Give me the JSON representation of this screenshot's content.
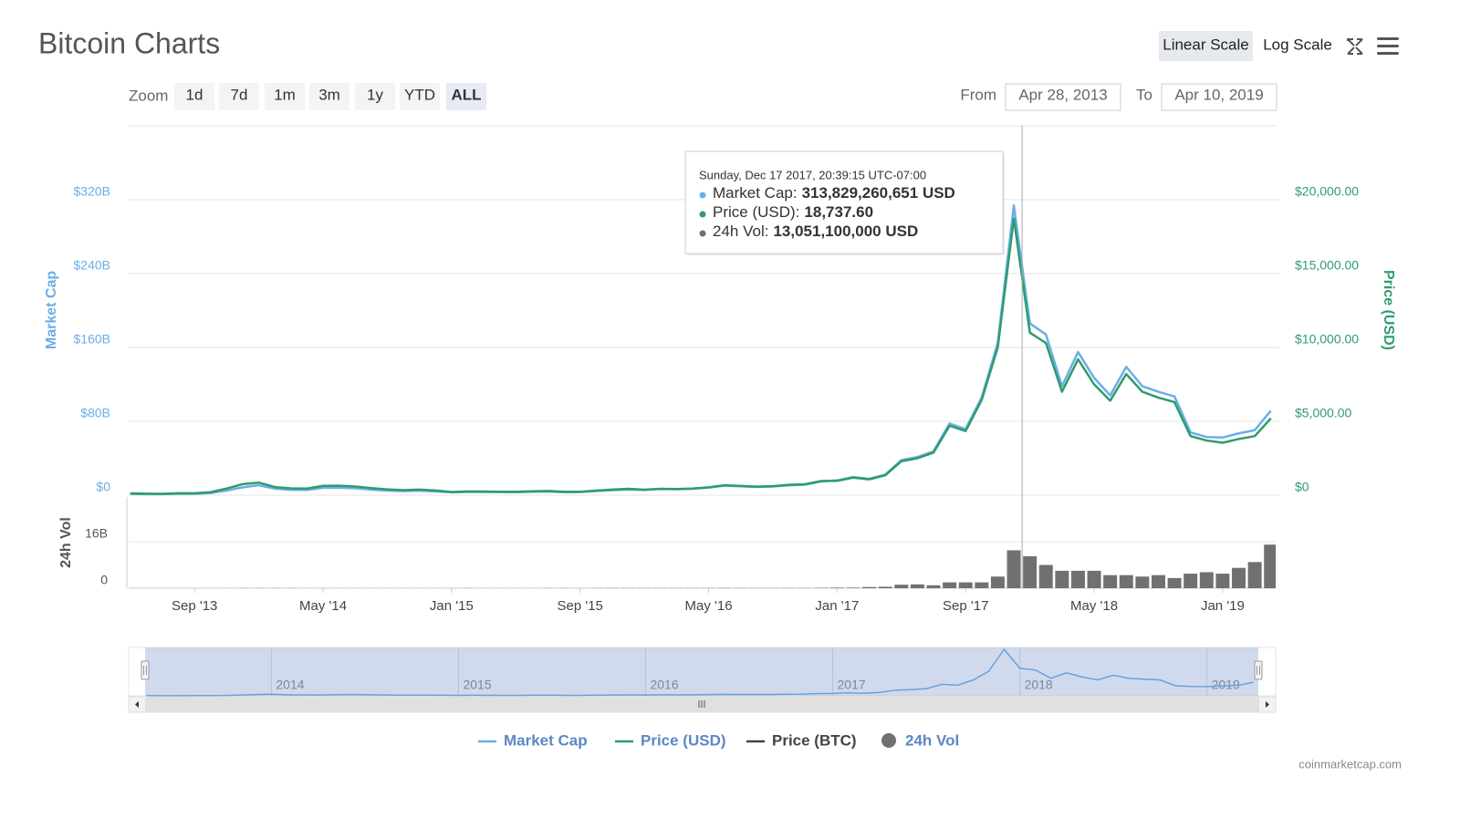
{
  "header": {
    "title": "Bitcoin Charts",
    "scale_buttons": [
      "Linear Scale",
      "Log Scale"
    ],
    "active_scale": "Linear Scale"
  },
  "zoom": {
    "label": "Zoom",
    "buttons": [
      "1d",
      "7d",
      "1m",
      "3m",
      "1y",
      "YTD",
      "ALL"
    ],
    "active": "ALL"
  },
  "range": {
    "from_label": "From",
    "from": "Apr 28, 2013",
    "to_label": "To",
    "to": "Apr 10, 2019"
  },
  "credit": "coinmarketcap.com",
  "chart_data": {
    "type": "line",
    "y_title": "Market Cap",
    "y2_title": "Price (USD)",
    "y3_title": "24h Vol",
    "x": [
      "2013-05",
      "2013-06",
      "2013-07",
      "2013-08",
      "2013-09",
      "2013-10",
      "2013-11",
      "2013-12",
      "2014-01",
      "2014-02",
      "2014-03",
      "2014-04",
      "2014-05",
      "2014-06",
      "2014-07",
      "2014-08",
      "2014-09",
      "2014-10",
      "2014-11",
      "2014-12",
      "2015-01",
      "2015-02",
      "2015-03",
      "2015-04",
      "2015-05",
      "2015-06",
      "2015-07",
      "2015-08",
      "2015-09",
      "2015-10",
      "2015-11",
      "2015-12",
      "2016-01",
      "2016-02",
      "2016-03",
      "2016-04",
      "2016-05",
      "2016-06",
      "2016-07",
      "2016-08",
      "2016-09",
      "2016-10",
      "2016-11",
      "2016-12",
      "2017-01",
      "2017-02",
      "2017-03",
      "2017-04",
      "2017-05",
      "2017-06",
      "2017-07",
      "2017-08",
      "2017-09",
      "2017-10",
      "2017-11",
      "2017-12",
      "2018-01",
      "2018-02",
      "2018-03",
      "2018-04",
      "2018-05",
      "2018-06",
      "2018-07",
      "2018-08",
      "2018-09",
      "2018-10",
      "2018-11",
      "2018-12",
      "2019-01",
      "2019-02",
      "2019-03",
      "2019-04"
    ],
    "xlim": [
      "2013-04-28",
      "2019-04-10"
    ],
    "xticks": [
      {
        "value": "2013-09",
        "label": "Sep '13"
      },
      {
        "value": "2014-05",
        "label": "May '14"
      },
      {
        "value": "2015-01",
        "label": "Jan '15"
      },
      {
        "value": "2015-09",
        "label": "Sep '15"
      },
      {
        "value": "2016-05",
        "label": "May '16"
      },
      {
        "value": "2017-01",
        "label": "Jan '17"
      },
      {
        "value": "2017-09",
        "label": "Sep '17"
      },
      {
        "value": "2018-05",
        "label": "May '18"
      },
      {
        "value": "2019-01",
        "label": "Jan '19"
      }
    ],
    "ylim": [
      0,
      400
    ],
    "yticks": [
      {
        "value": 0,
        "label": "$0"
      },
      {
        "value": 80,
        "label": "$80B"
      },
      {
        "value": 160,
        "label": "$160B"
      },
      {
        "value": 240,
        "label": "$240B"
      },
      {
        "value": 320,
        "label": "$320B"
      }
    ],
    "y2lim": [
      0,
      25000
    ],
    "y2ticks": [
      {
        "value": 0,
        "label": "$0"
      },
      {
        "value": 5000,
        "label": "$5,000.00"
      },
      {
        "value": 10000,
        "label": "$10,000.00"
      },
      {
        "value": 15000,
        "label": "$15,000.00"
      },
      {
        "value": 20000,
        "label": "$20,000.00"
      }
    ],
    "y3lim": [
      0,
      31.4
    ],
    "y3ticks": [
      0,
      {
        "value": 16,
        "label": "16B"
      }
    ],
    "grid": true,
    "series": [
      {
        "name": "Market Cap",
        "color": "#6aaee8",
        "values": [
          1.4,
          1.1,
          1.1,
          1.5,
          1.5,
          2.3,
          5.1,
          8.5,
          10.8,
          7.0,
          5.8,
          5.7,
          8.0,
          8.1,
          7.5,
          6.1,
          5.0,
          4.4,
          4.9,
          4.1,
          3.1,
          3.6,
          3.4,
          3.3,
          3.2,
          3.7,
          4.0,
          3.2,
          3.3,
          4.4,
          5.4,
          6.1,
          5.7,
          6.7,
          6.4,
          6.9,
          8.2,
          10.3,
          9.6,
          8.9,
          9.4,
          10.8,
          11.4,
          14.8,
          16.0,
          19.6,
          17.7,
          22.3,
          38.0,
          41.3,
          47.5,
          77.6,
          71.6,
          106.0,
          165.0,
          313.8,
          186,
          174,
          118,
          155,
          127,
          108,
          139,
          118,
          112,
          107,
          68,
          63,
          62.5,
          66.9,
          70.4,
          91.5
        ]
      },
      {
        "name": "Price (USD)",
        "color": "#2e9c6c",
        "axis": "y2",
        "values": [
          120,
          100,
          95,
          130,
          130,
          200,
          450,
          750,
          850,
          550,
          460,
          450,
          630,
          640,
          590,
          480,
          390,
          340,
          380,
          320,
          220,
          255,
          245,
          235,
          230,
          265,
          285,
          230,
          235,
          310,
          380,
          430,
          370,
          435,
          415,
          450,
          530,
          670,
          625,
          575,
          610,
          700,
          740,
          960,
          970,
          1190,
          1070,
          1350,
          2300,
          2500,
          2880,
          4700,
          4340,
          6450,
          10000,
          18737.6,
          11000,
          10300,
          7000,
          9200,
          7500,
          6400,
          8200,
          7000,
          6600,
          6300,
          4000,
          3700,
          3550,
          3800,
          4000,
          5200
        ]
      },
      {
        "name": "Price (BTC)",
        "color": "#434348",
        "hidden": true
      },
      {
        "name": "24h Vol",
        "color": "#707070",
        "type": "column",
        "axis": "y3",
        "values": [
          0.01,
          0.01,
          0.01,
          0.01,
          0.01,
          0.01,
          0.02,
          0.03,
          0.04,
          0.03,
          0.03,
          0.02,
          0.02,
          0.02,
          0.02,
          0.02,
          0.02,
          0.02,
          0.02,
          0.02,
          0.03,
          0.03,
          0.02,
          0.02,
          0.02,
          0.02,
          0.03,
          0.03,
          0.03,
          0.04,
          0.08,
          0.06,
          0.06,
          0.05,
          0.05,
          0.05,
          0.06,
          0.1,
          0.07,
          0.06,
          0.06,
          0.07,
          0.08,
          0.15,
          0.2,
          0.2,
          0.4,
          0.5,
          1.2,
          1.3,
          1.0,
          2.0,
          2.0,
          2.0,
          4.0,
          13.05,
          11,
          8,
          6,
          6,
          6,
          4.5,
          4.5,
          4,
          4.5,
          3.5,
          5,
          5.5,
          5,
          7,
          9,
          15
        ]
      }
    ],
    "tooltip": {
      "crosshair_x": "2017-12-17",
      "date": "Sunday, Dec 17 2017, 20:39:15 UTC-07:00",
      "items": [
        {
          "label": "Market Cap:",
          "value": "313,829,260,651 USD"
        },
        {
          "label": "Price (USD):",
          "value": "18,737.60"
        },
        {
          "label": "24h Vol:",
          "value": "13,051,100,000 USD"
        }
      ]
    },
    "navigator": {
      "xticks": [
        {
          "value": "2014-01",
          "label": "2014"
        },
        {
          "value": "2015-01",
          "label": "2015"
        },
        {
          "value": "2016-01",
          "label": "2016"
        },
        {
          "value": "2017-01",
          "label": "2017"
        },
        {
          "value": "2018-01",
          "label": "2018"
        },
        {
          "value": "2019-01",
          "label": "2019"
        }
      ]
    }
  }
}
